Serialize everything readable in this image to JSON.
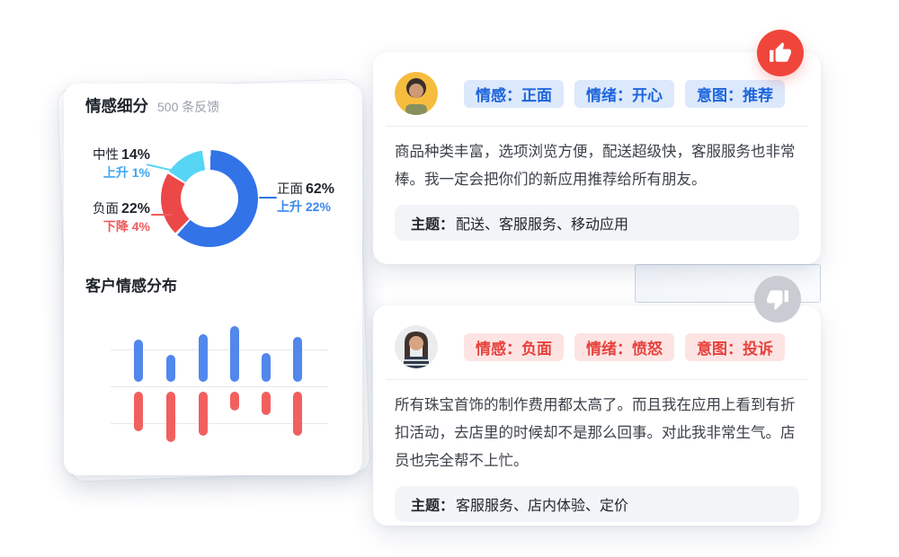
{
  "left_card": {
    "title": "情感细分",
    "subtitle": "500 条反馈",
    "bar_title": "客户情感分布",
    "donut_labels": {
      "positive": {
        "label": "正面",
        "pct": "62%",
        "delta": "上升 22%"
      },
      "negative": {
        "label": "负面",
        "pct": "22%",
        "delta": "下降 4%"
      },
      "neutral": {
        "label": "中性",
        "pct": "14%",
        "delta": "上升 1%"
      }
    }
  },
  "cards": [
    {
      "reaction": "thumbs-up",
      "tags": [
        "情感：正面",
        "情绪：开心",
        "意图：推荐"
      ],
      "body": "商品种类丰富，选项浏览方便，配送超级快，客服服务也非常棒。我一定会把你们的新应用推荐给所有朋友。",
      "theme_label": "主题：",
      "theme_value": "配送、客服服务、移动应用"
    },
    {
      "reaction": "thumbs-down",
      "tags": [
        "情感：负面",
        "情绪：愤怒",
        "意图：投诉"
      ],
      "body": "所有珠宝首饰的制作费用都太高了。而且我在应用上看到有折扣活动，去店里的时候却不是那么回事。对此我非常生气。店员也完全帮不上忙。",
      "theme_label": "主题：",
      "theme_value": "客服服务、店内体验、定价"
    }
  ],
  "colors": {
    "donut_positive": "#3273E8",
    "donut_negative": "#EC4848",
    "donut_neutral": "#57D5F5",
    "bar_positive": "#5287EC",
    "bar_negative": "#F25F5F",
    "tag_blue_bg": "#DCE8FB",
    "tag_blue_text": "#1E66DB",
    "tag_red_bg": "#FDE4E3",
    "tag_red_text": "#E7423D",
    "thumb_up_bg": "#F0453B",
    "thumb_down_bg": "#C9CDD3"
  },
  "chart_data": [
    {
      "type": "pie",
      "donut": true,
      "title": "情感细分",
      "subtitle": "500 条反馈",
      "labels": [
        "正面",
        "负面",
        "中性"
      ],
      "values": [
        62,
        22,
        14
      ],
      "deltas": [
        "上升 22%",
        "下降 4%",
        "上升 1%"
      ],
      "colors": [
        "#3273E8",
        "#EC4848",
        "#57D5F5"
      ],
      "start_angle_deg": 0,
      "direction": "clockwise",
      "segment_gap_deg": 3
    },
    {
      "type": "bar",
      "title": "客户情感分布",
      "orientation": "diverging-vertical",
      "categories": [
        1,
        2,
        3,
        4,
        5,
        6
      ],
      "axis_tick_labels": false,
      "gridlines": 3,
      "units": "px (estimated from image)",
      "series": [
        {
          "name": "positive-above-baseline",
          "color": "#5287EC",
          "values": [
            47,
            30,
            53,
            62,
            32,
            50
          ]
        },
        {
          "name": "negative-below-baseline",
          "color": "#F25F5F",
          "values": [
            44,
            56,
            49,
            21,
            26,
            49
          ]
        }
      ]
    }
  ]
}
